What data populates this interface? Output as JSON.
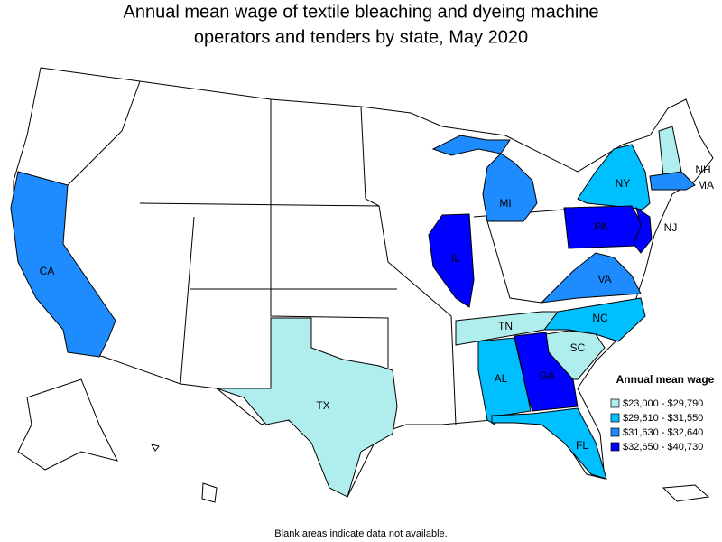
{
  "header": {
    "title_line1": "Annual mean wage of textile bleaching and dyeing machine",
    "title_line2": "operators and tenders by state, May 2020"
  },
  "legend": {
    "title": "Annual mean wage",
    "items": [
      {
        "label": "$23,000 - $29,790",
        "color": "#b0eeee"
      },
      {
        "label": "$29,810 - $31,550",
        "color": "#00bfff"
      },
      {
        "label": "$31,630 - $32,640",
        "color": "#1e8cff"
      },
      {
        "label": "$32,650 - $40,730",
        "color": "#0000ff"
      }
    ]
  },
  "states": [
    {
      "label": "CA",
      "color": "#1e8cff"
    },
    {
      "label": "TX",
      "color": "#b0eeee"
    },
    {
      "label": "IL",
      "color": "#0000ff"
    },
    {
      "label": "MI",
      "color": "#1e8cff"
    },
    {
      "label": "NY",
      "color": "#00bfff"
    },
    {
      "label": "NH",
      "color": "#b0eeee"
    },
    {
      "label": "MA",
      "color": "#1e8cff"
    },
    {
      "label": "PA",
      "color": "#0000ff"
    },
    {
      "label": "NJ",
      "color": "#0000ff"
    },
    {
      "label": "VA",
      "color": "#1e8cff"
    },
    {
      "label": "NC",
      "color": "#00bfff"
    },
    {
      "label": "TN",
      "color": "#b0eeee"
    },
    {
      "label": "SC",
      "color": "#b0eeee"
    },
    {
      "label": "GA",
      "color": "#0000ff"
    },
    {
      "label": "AL",
      "color": "#00bfff"
    },
    {
      "label": "FL",
      "color": "#00bfff"
    }
  ],
  "footnote": "Blank areas indicate data not available."
}
